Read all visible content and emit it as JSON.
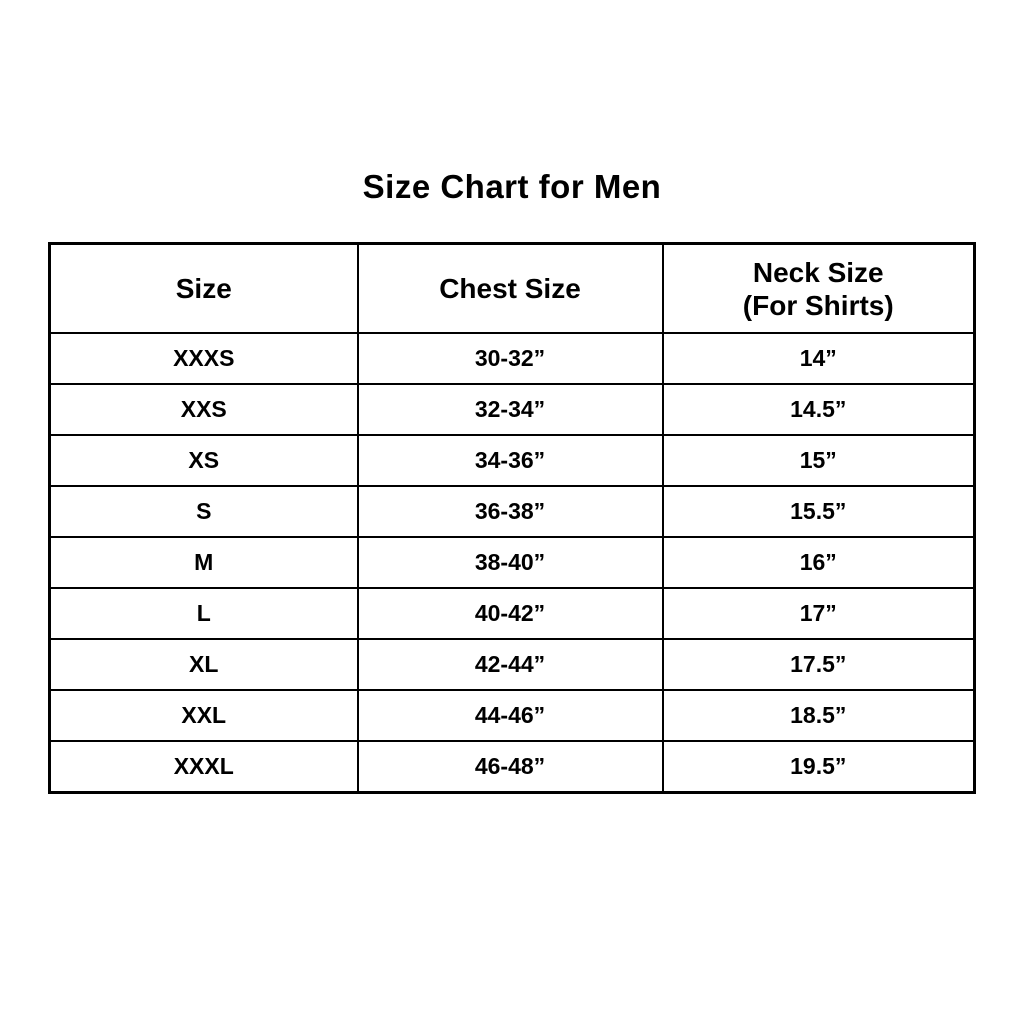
{
  "page": {
    "background_color": "#ffffff",
    "text_color": "#000000"
  },
  "title": "Size Chart for Men",
  "chart_data": {
    "type": "table",
    "title": "Size Chart for Men",
    "columns": [
      "Size",
      "Chest Size",
      "Neck Size (For Shirts)"
    ],
    "rows": [
      [
        "XXXS",
        "30-32”",
        "14”"
      ],
      [
        "XXS",
        "32-34”",
        "14.5”"
      ],
      [
        "XS",
        "34-36”",
        "15”"
      ],
      [
        "S",
        "36-38”",
        "15.5”"
      ],
      [
        "M",
        "38-40”",
        "16”"
      ],
      [
        "L",
        "40-42”",
        "17”"
      ],
      [
        "XL",
        "42-44”",
        "17.5”"
      ],
      [
        "XXL",
        "44-46”",
        "18.5”"
      ],
      [
        "XXXL",
        "46-48”",
        "19.5”"
      ]
    ],
    "layout": {
      "grid": "on",
      "header_rows": 1,
      "border_color": "#000000"
    }
  },
  "table": {
    "headers": {
      "size": "Size",
      "chest": "Chest Size",
      "neck_line1": "Neck Size",
      "neck_line2": "(For Shirts)"
    },
    "rows": [
      {
        "size": "XXXS",
        "chest": "30-32”",
        "neck": "14”"
      },
      {
        "size": "XXS",
        "chest": "32-34”",
        "neck": "14.5”"
      },
      {
        "size": "XS",
        "chest": "34-36”",
        "neck": "15”"
      },
      {
        "size": "S",
        "chest": "36-38”",
        "neck": "15.5”"
      },
      {
        "size": "M",
        "chest": "38-40”",
        "neck": "16”"
      },
      {
        "size": "L",
        "chest": "40-42”",
        "neck": "17”"
      },
      {
        "size": "XL",
        "chest": "42-44”",
        "neck": "17.5”"
      },
      {
        "size": "XXL",
        "chest": "44-46”",
        "neck": "18.5”"
      },
      {
        "size": "XXXL",
        "chest": "46-48”",
        "neck": "19.5”"
      }
    ]
  }
}
